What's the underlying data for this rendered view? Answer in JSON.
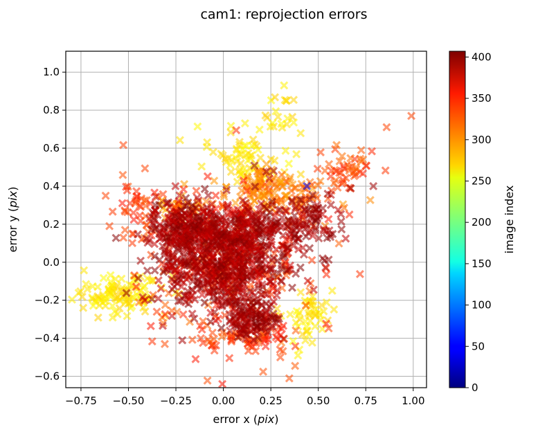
{
  "chart_data": {
    "type": "scatter",
    "title": "cam1: reprojection errors",
    "xlabel": {
      "prefix": "error x (",
      "unit": "pix",
      "suffix": ")"
    },
    "ylabel": {
      "prefix": "error y (",
      "unit": "pix",
      "suffix": ")"
    },
    "xlim": [
      -0.83,
      1.07
    ],
    "ylim": [
      -0.66,
      1.11
    ],
    "xticks": [
      -0.75,
      -0.5,
      -0.25,
      0.0,
      0.25,
      0.5,
      0.75,
      1.0
    ],
    "xtick_labels": [
      "−0.75",
      "−0.50",
      "−0.25",
      "0.00",
      "0.25",
      "0.50",
      "0.75",
      "1.00"
    ],
    "yticks": [
      -0.6,
      -0.4,
      -0.2,
      0.0,
      0.2,
      0.4,
      0.6,
      0.8,
      1.0
    ],
    "ytick_labels": [
      "−0.6",
      "−0.4",
      "−0.2",
      "0.0",
      "0.2",
      "0.4",
      "0.6",
      "0.8",
      "1.0"
    ],
    "grid": true,
    "marker": "X",
    "colormap": "jet",
    "colorbar": {
      "label": "image index",
      "range": [
        0,
        407
      ],
      "ticks": [
        0,
        50,
        100,
        150,
        200,
        250,
        300,
        350,
        400
      ],
      "tick_labels": [
        "0",
        "50",
        "100",
        "150",
        "200",
        "250",
        "300",
        "350",
        "400"
      ]
    },
    "clusters": [
      {
        "center": [
          0.0,
          0.0
        ],
        "spread": [
          0.17,
          0.14
        ],
        "count": 650,
        "cmin": 375,
        "cmax": 407
      },
      {
        "center": [
          -0.2,
          0.18
        ],
        "spread": [
          0.09,
          0.07
        ],
        "count": 200,
        "cmin": 375,
        "cmax": 407
      },
      {
        "center": [
          0.12,
          0.15
        ],
        "spread": [
          0.12,
          0.1
        ],
        "count": 180,
        "cmin": 375,
        "cmax": 407
      },
      {
        "center": [
          0.15,
          -0.3
        ],
        "spread": [
          0.07,
          0.05
        ],
        "count": 120,
        "cmin": 380,
        "cmax": 407
      },
      {
        "center": [
          0.45,
          0.22
        ],
        "spread": [
          0.08,
          0.08
        ],
        "count": 90,
        "cmin": 380,
        "cmax": 407
      },
      {
        "center": [
          0.0,
          0.0
        ],
        "spread": [
          0.26,
          0.22
        ],
        "count": 260,
        "cmin": 310,
        "cmax": 350
      },
      {
        "center": [
          0.25,
          0.35
        ],
        "spread": [
          0.16,
          0.06
        ],
        "count": 110,
        "cmin": 290,
        "cmax": 330
      },
      {
        "center": [
          -0.45,
          0.3
        ],
        "spread": [
          0.05,
          0.09
        ],
        "count": 40,
        "cmin": 320,
        "cmax": 350
      },
      {
        "center": [
          0.65,
          0.48
        ],
        "spread": [
          0.09,
          0.06
        ],
        "count": 50,
        "cmin": 310,
        "cmax": 345
      },
      {
        "center": [
          0.1,
          -0.4
        ],
        "spread": [
          0.13,
          0.04
        ],
        "count": 60,
        "cmin": 320,
        "cmax": 350
      },
      {
        "center": [
          -0.55,
          -0.17
        ],
        "spread": [
          0.12,
          0.05
        ],
        "count": 110,
        "cmin": 255,
        "cmax": 275
      },
      {
        "center": [
          0.12,
          0.55
        ],
        "spread": [
          0.1,
          0.08
        ],
        "count": 70,
        "cmin": 255,
        "cmax": 275
      },
      {
        "center": [
          0.32,
          0.78
        ],
        "spread": [
          0.05,
          0.08
        ],
        "count": 20,
        "cmin": 255,
        "cmax": 275
      },
      {
        "center": [
          0.42,
          -0.28
        ],
        "spread": [
          0.07,
          0.08
        ],
        "count": 50,
        "cmin": 255,
        "cmax": 275
      },
      {
        "center": [
          -0.25,
          0.28
        ],
        "spread": [
          0.06,
          0.04
        ],
        "count": 25,
        "cmin": 285,
        "cmax": 305
      },
      {
        "center": [
          0.18,
          0.42
        ],
        "spread": [
          0.08,
          0.04
        ],
        "count": 30,
        "cmin": 290,
        "cmax": 310
      }
    ],
    "points": [
      {
        "x": 0.99,
        "y": 0.77,
        "c": 330
      },
      {
        "x": 0.86,
        "y": 0.71,
        "c": 330
      },
      {
        "x": 0.79,
        "y": 0.4,
        "c": 395
      },
      {
        "x": 0.67,
        "y": 0.39,
        "c": 395
      },
      {
        "x": 0.44,
        "y": 0.4,
        "c": 40
      },
      {
        "x": 0.32,
        "y": 0.93,
        "c": 260
      },
      {
        "x": 0.3,
        "y": -0.5,
        "c": 330
      },
      {
        "x": 0.45,
        "y": -0.38,
        "c": 260
      },
      {
        "x": -0.62,
        "y": 0.35,
        "c": 330
      },
      {
        "x": -0.6,
        "y": 0.19,
        "c": 330
      },
      {
        "x": 0.55,
        "y": 0.36,
        "c": 395
      }
    ]
  }
}
